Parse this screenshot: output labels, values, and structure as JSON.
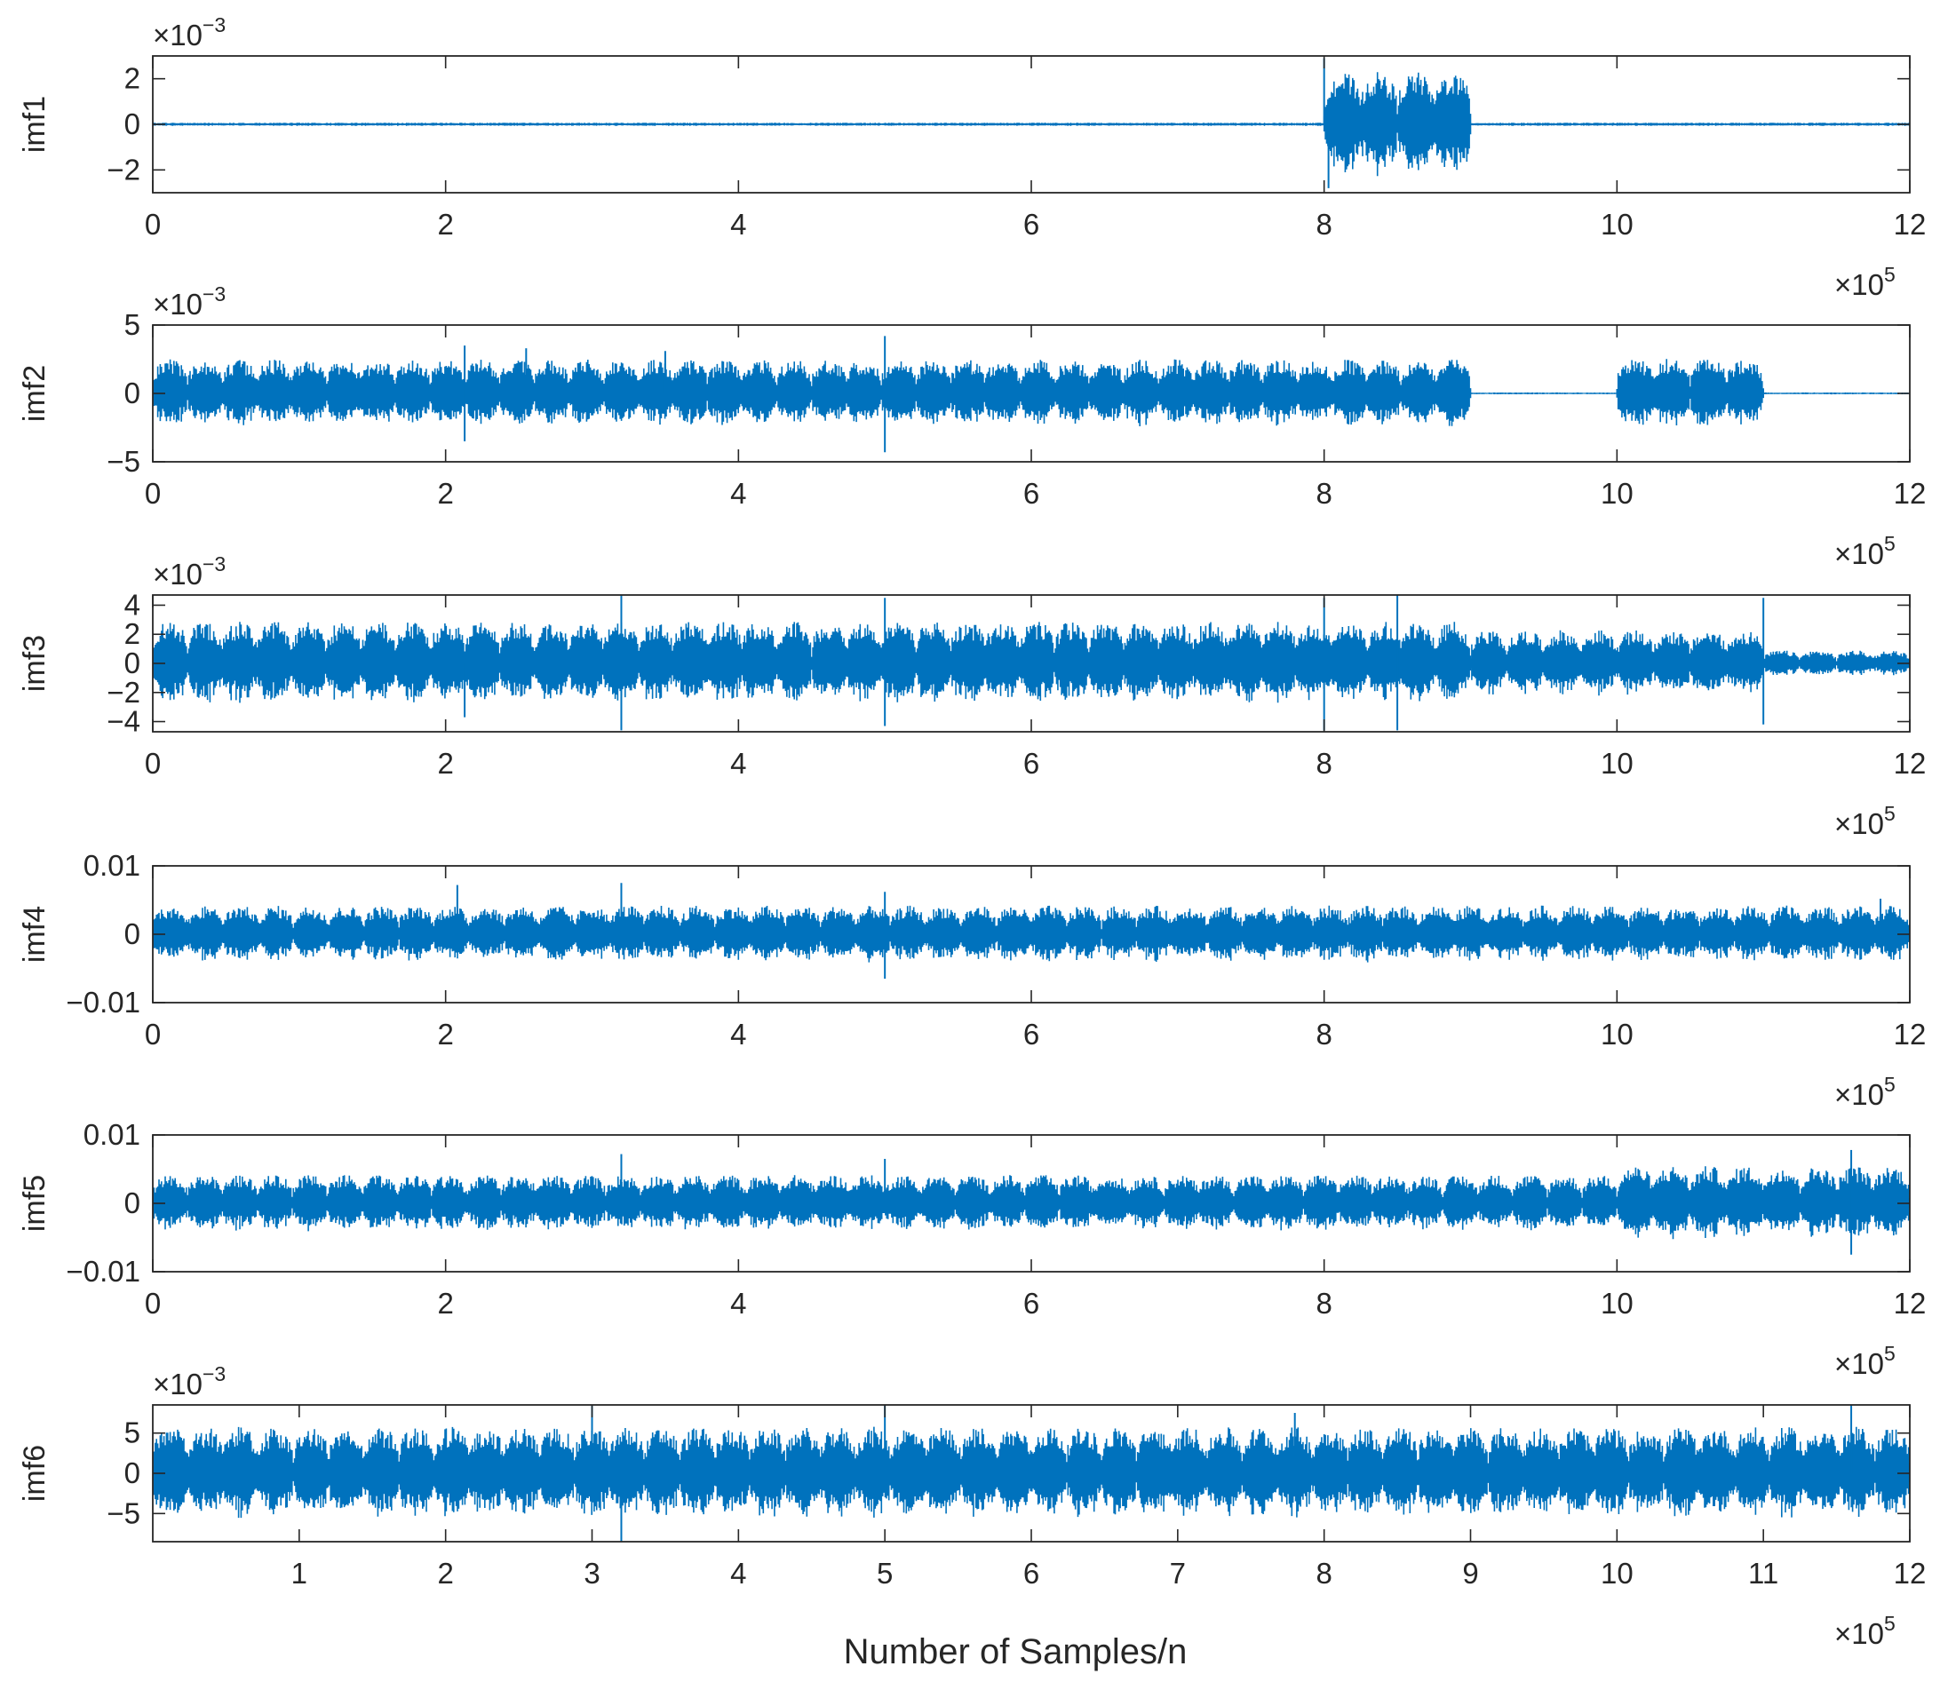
{
  "chart_data": {
    "type": "line",
    "xlabel": "Number of Samples/n",
    "series_color": "#0072BD",
    "x_range": [
      0,
      1200000
    ],
    "panels": [
      {
        "name": "imf1",
        "ylabel": "imf1",
        "ylim": [
          -0.003,
          0.003
        ],
        "yticks": [
          -0.002,
          0,
          0.002
        ],
        "ytick_labels": [
          "−2",
          "0",
          "2"
        ],
        "y_exponent_prefix": "×10",
        "y_exponent_power": "−3",
        "xticks": [
          0,
          200000,
          400000,
          600000,
          800000,
          1000000,
          1200000
        ],
        "xtick_labels": [
          "0",
          "2",
          "4",
          "6",
          "8",
          "10",
          "12"
        ],
        "x_exponent_prefix": "×10",
        "x_exponent_power": "5",
        "envelope": [
          {
            "x_start": 0,
            "x_end": 800000,
            "amplitude": 7e-05,
            "bursts": 0,
            "spikes": []
          },
          {
            "x_start": 800000,
            "x_end": 900000,
            "amplitude": 0.0023,
            "bursts": 4,
            "spikes": [
              [
                800000,
                0.0029
              ],
              [
                803000,
                -0.0028
              ]
            ]
          },
          {
            "x_start": 900000,
            "x_end": 1200000,
            "amplitude": 7e-05,
            "bursts": 0,
            "spikes": []
          }
        ]
      },
      {
        "name": "imf2",
        "ylabel": "imf2",
        "ylim": [
          -0.005,
          0.005
        ],
        "yticks": [
          -0.005,
          0,
          0.005
        ],
        "ytick_labels": [
          "−5",
          "0",
          "5"
        ],
        "y_exponent_prefix": "×10",
        "y_exponent_power": "−3",
        "xticks": [
          0,
          200000,
          400000,
          600000,
          800000,
          1000000,
          1200000
        ],
        "xtick_labels": [
          "0",
          "2",
          "4",
          "6",
          "8",
          "10",
          "12"
        ],
        "x_exponent_prefix": "×10",
        "x_exponent_power": "5",
        "envelope": [
          {
            "x_start": 0,
            "x_end": 900000,
            "amplitude": 0.0025,
            "bursts": 38,
            "spikes": [
              [
                213000,
                0.0035
              ],
              [
                213000,
                -0.0035
              ],
              [
                500000,
                0.0042
              ],
              [
                500000,
                -0.0043
              ],
              [
                255000,
                0.0033
              ],
              [
                350000,
                0.0031
              ]
            ]
          },
          {
            "x_start": 900000,
            "x_end": 1000000,
            "amplitude": 7e-05,
            "bursts": 0,
            "spikes": []
          },
          {
            "x_start": 1000000,
            "x_end": 1100000,
            "amplitude": 0.0026,
            "bursts": 4,
            "spikes": []
          },
          {
            "x_start": 1100000,
            "x_end": 1200000,
            "amplitude": 7e-05,
            "bursts": 0,
            "spikes": []
          }
        ]
      },
      {
        "name": "imf3",
        "ylabel": "imf3",
        "ylim": [
          -0.0047,
          0.0047
        ],
        "yticks": [
          -0.004,
          -0.002,
          0,
          0.002,
          0.004
        ],
        "ytick_labels": [
          "−4",
          "−2",
          "0",
          "2",
          "4"
        ],
        "y_exponent_prefix": "×10",
        "y_exponent_power": "−3",
        "xticks": [
          0,
          200000,
          400000,
          600000,
          800000,
          1000000,
          1200000
        ],
        "xtick_labels": [
          "0",
          "2",
          "4",
          "6",
          "8",
          "10",
          "12"
        ],
        "x_exponent_prefix": "×10",
        "x_exponent_power": "5",
        "envelope": [
          {
            "x_start": 0,
            "x_end": 900000,
            "amplitude": 0.0029,
            "bursts": 38,
            "spikes": [
              [
                320000,
                0.0047
              ],
              [
                320000,
                -0.0046
              ],
              [
                500000,
                0.0045
              ],
              [
                500000,
                -0.0043
              ],
              [
                800000,
                0.0045
              ],
              [
                800000,
                -0.0046
              ],
              [
                850000,
                0.0047
              ],
              [
                850000,
                -0.0046
              ],
              [
                213000,
                -0.0037
              ]
            ]
          },
          {
            "x_start": 900000,
            "x_end": 1100000,
            "amplitude": 0.0023,
            "bursts": 8,
            "spikes": [
              [
                1100000,
                0.0045
              ],
              [
                1100000,
                -0.0042
              ]
            ]
          },
          {
            "x_start": 1100000,
            "x_end": 1200000,
            "amplitude": 0.0009,
            "bursts": 4,
            "spikes": []
          }
        ]
      },
      {
        "name": "imf4",
        "ylabel": "imf4",
        "ylim": [
          -0.01,
          0.01
        ],
        "yticks": [
          -0.01,
          0,
          0.01
        ],
        "ytick_labels": [
          "−0.01",
          "0",
          "0.01"
        ],
        "y_exponent_prefix": "",
        "y_exponent_power": "",
        "xticks": [
          0,
          200000,
          400000,
          600000,
          800000,
          1000000,
          1200000
        ],
        "xtick_labels": [
          "0",
          "2",
          "4",
          "6",
          "8",
          "10",
          "12"
        ],
        "x_exponent_prefix": "×10",
        "x_exponent_power": "5",
        "envelope": [
          {
            "x_start": 0,
            "x_end": 1200000,
            "amplitude": 0.0042,
            "bursts": 50,
            "spikes": [
              [
                208000,
                0.0072
              ],
              [
                320000,
                0.0075
              ],
              [
                500000,
                -0.0065
              ],
              [
                500000,
                0.0062
              ],
              [
                1180000,
                0.0052
              ]
            ]
          }
        ]
      },
      {
        "name": "imf5",
        "ylabel": "imf5",
        "ylim": [
          -0.01,
          0.01
        ],
        "yticks": [
          -0.01,
          0,
          0.01
        ],
        "ytick_labels": [
          "−0.01",
          "0",
          "0.01"
        ],
        "y_exponent_prefix": "",
        "y_exponent_power": "",
        "xticks": [
          0,
          200000,
          400000,
          600000,
          800000,
          1000000,
          1200000
        ],
        "xtick_labels": [
          "0",
          "2",
          "4",
          "6",
          "8",
          "10",
          "12"
        ],
        "x_exponent_prefix": "×10",
        "x_exponent_power": "5",
        "envelope": [
          {
            "x_start": 0,
            "x_end": 1000000,
            "amplitude": 0.0042,
            "bursts": 42,
            "spikes": [
              [
                320000,
                0.0072
              ],
              [
                500000,
                0.0065
              ]
            ]
          },
          {
            "x_start": 1000000,
            "x_end": 1200000,
            "amplitude": 0.0055,
            "bursts": 8,
            "spikes": [
              [
                1160000,
                0.0078
              ],
              [
                1160000,
                -0.0075
              ]
            ]
          }
        ]
      },
      {
        "name": "imf6",
        "ylabel": "imf6",
        "ylim": [
          -0.0085,
          0.0085
        ],
        "yticks": [
          -0.005,
          0,
          0.005
        ],
        "ytick_labels": [
          "−5",
          "0",
          "5"
        ],
        "y_exponent_prefix": "×10",
        "y_exponent_power": "−3",
        "xticks": [
          100000,
          200000,
          300000,
          400000,
          500000,
          600000,
          700000,
          800000,
          900000,
          1000000,
          1100000,
          1200000
        ],
        "xtick_labels": [
          "1",
          "2",
          "3",
          "4",
          "5",
          "6",
          "7",
          "8",
          "9",
          "10",
          "11",
          "12"
        ],
        "x_exponent_prefix": "×10",
        "x_exponent_power": "5",
        "envelope": [
          {
            "x_start": 0,
            "x_end": 1200000,
            "amplitude": 0.0058,
            "bursts": 50,
            "spikes": [
              [
                300000,
                0.0085
              ],
              [
                320000,
                -0.0085
              ],
              [
                500000,
                0.0085
              ],
              [
                780000,
                0.0075
              ],
              [
                1160000,
                0.0085
              ]
            ]
          }
        ]
      }
    ]
  }
}
